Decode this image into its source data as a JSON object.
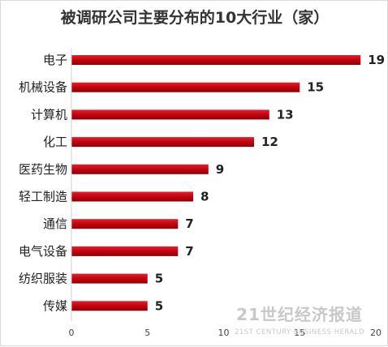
{
  "chart_data": {
    "type": "bar",
    "orientation": "horizontal",
    "title": "被调研公司主要分布的10大行业（家）",
    "categories": [
      "电子",
      "机械设备",
      "计算机",
      "化工",
      "医药生物",
      "轻工制造",
      "通信",
      "电气设备",
      "纺织服装",
      "传媒"
    ],
    "values": [
      19,
      15,
      13,
      12,
      9,
      8,
      7,
      7,
      5,
      5
    ],
    "xlim": [
      0,
      20
    ],
    "xticks": [
      0,
      5,
      10,
      15,
      20
    ],
    "grid": false,
    "legend": "none",
    "bar_color": "#c0000c"
  },
  "watermark": {
    "cn": "21世纪经济报道",
    "en": "21ST CENTURY BUSINESS HERALD"
  }
}
